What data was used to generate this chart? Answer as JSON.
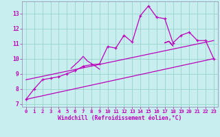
{
  "xlabel": "Windchill (Refroidissement éolien,°C)",
  "xlim": [
    -0.5,
    23.5
  ],
  "ylim": [
    6.8,
    13.8
  ],
  "yticks": [
    7,
    8,
    9,
    10,
    11,
    12,
    13
  ],
  "xticks": [
    0,
    1,
    2,
    3,
    4,
    5,
    6,
    7,
    8,
    9,
    10,
    11,
    12,
    13,
    14,
    15,
    16,
    17,
    18,
    19,
    20,
    21,
    22,
    23
  ],
  "bg_color": "#c8eef0",
  "grid_color": "#98d4cc",
  "line_color": "#bb00bb",
  "line1_x": [
    0,
    1,
    2,
    3,
    4,
    5,
    6,
    7,
    8,
    9,
    10,
    11,
    12,
    13,
    14,
    15,
    16,
    17,
    18,
    19,
    20,
    21,
    22,
    23
  ],
  "line1_y": [
    7.3,
    8.0,
    8.6,
    8.7,
    8.8,
    9.0,
    9.2,
    9.5,
    9.6,
    9.65,
    10.8,
    10.7,
    11.55,
    11.1,
    12.85,
    13.5,
    12.75,
    12.65,
    11.05,
    11.55,
    11.75,
    11.2,
    11.2,
    10.0
  ],
  "line2_x": [
    0,
    23
  ],
  "line2_y": [
    7.3,
    10.0
  ],
  "line3_x": [
    0,
    23
  ],
  "line3_y": [
    8.6,
    11.2
  ],
  "zigzag1_x": [
    5.5,
    6.5,
    7.0,
    7.5,
    8.5,
    9.0
  ],
  "zigzag1_y": [
    9.35,
    9.85,
    10.15,
    9.85,
    9.5,
    9.3
  ],
  "zigzag2_x": [
    17.0,
    17.5,
    18.0,
    17.5,
    17.0
  ],
  "zigzag2_y": [
    11.05,
    11.15,
    10.85,
    11.15,
    11.05
  ]
}
